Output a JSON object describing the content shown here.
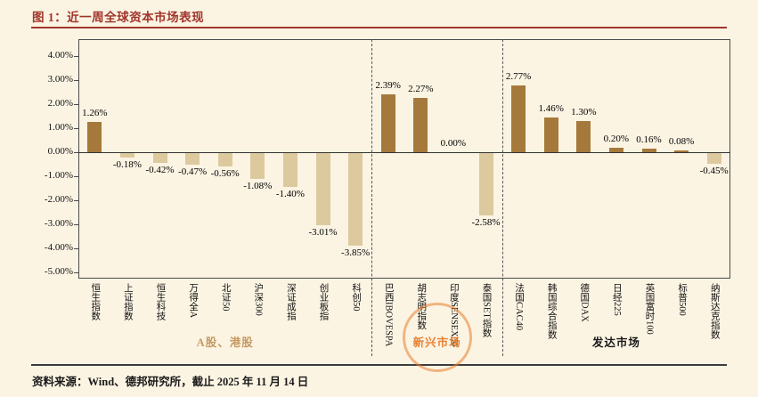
{
  "page": {
    "title": "图 1：近一周全球资本市场表现",
    "source": "资料来源：Wind、德邦研究所，截止 2025 年 11 月 14 日"
  },
  "colors": {
    "background": "#FCF4E3",
    "accent_red": "#A1352C",
    "footer_rule": "#3C3C3C",
    "bar_positive": "#A5793B",
    "bar_negative": "#DCCA9E",
    "group_a": "#C49A62",
    "group_em": "#E67F2E",
    "group_dm": "#1A1A1A",
    "watermark": "#E67F2E"
  },
  "chart_data": {
    "type": "bar",
    "title": "近一周全球资本市场表现",
    "xlabel": "",
    "ylabel": "",
    "ylim": [
      -5,
      4
    ],
    "ytick_step": 1,
    "yticks": [
      "4.00%",
      "3.00%",
      "2.00%",
      "1.00%",
      "0.00%",
      "-1.00%",
      "-2.00%",
      "-3.00%",
      "-4.00%",
      "-5.00%"
    ],
    "grid": false,
    "legend": "none",
    "categories": [
      "恒生指数",
      "上证指数",
      "恒生科技",
      "万得全A",
      "北证50",
      "沪深300",
      "深证成指",
      "创业板指",
      "科创50",
      "巴西IBOVESPA",
      "胡志明指数",
      "印度SENSEX30",
      "泰国SET指数",
      "法国CAC40",
      "韩国综合指数",
      "德国DAX",
      "日经225",
      "英国富时100",
      "标普500",
      "纳斯达克指数"
    ],
    "values": [
      1.26,
      -0.18,
      -0.42,
      -0.47,
      -0.56,
      -1.08,
      -1.4,
      -3.01,
      -3.85,
      2.39,
      2.27,
      0.0,
      -2.58,
      2.77,
      1.46,
      1.3,
      0.2,
      0.16,
      0.08,
      -0.45
    ],
    "labels": [
      "1.26%",
      "-0.18%",
      "-0.42%",
      "-0.47%",
      "-0.56%",
      "-1.08%",
      "-1.40%",
      "-3.01%",
      "-3.85%",
      "2.39%",
      "2.27%",
      "0.00%",
      "-2.58%",
      "2.77%",
      "1.46%",
      "1.30%",
      "0.20%",
      "0.16%",
      "0.08%",
      "-0.45%"
    ],
    "groups": [
      {
        "label": "A股、港股",
        "count": 9,
        "color_key": "group_a"
      },
      {
        "label": "新兴市场",
        "count": 4,
        "color_key": "group_em"
      },
      {
        "label": "发达市场",
        "count": 7,
        "color_key": "group_dm"
      }
    ]
  }
}
